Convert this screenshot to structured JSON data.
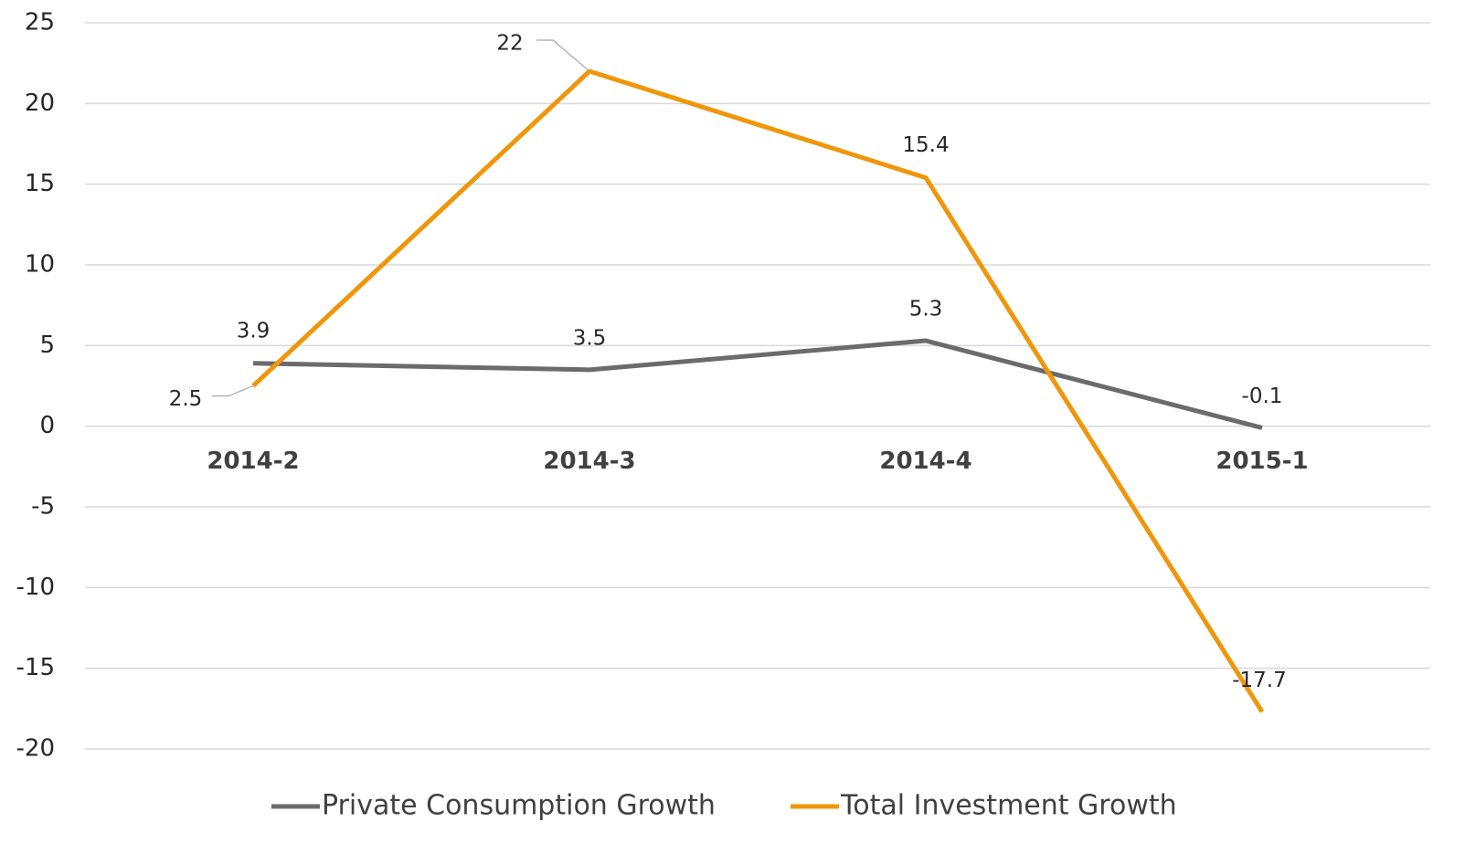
{
  "chart_data": {
    "type": "line",
    "categories": [
      "2014-2",
      "2014-3",
      "2014-4",
      "2015-1"
    ],
    "series": [
      {
        "name": "Private Consumption Growth",
        "color": "#6b6b6b",
        "values": [
          3.9,
          3.5,
          5.3,
          -0.1
        ]
      },
      {
        "name": "Total Investment Growth",
        "color": "#f0960a",
        "values": [
          2.5,
          22,
          15.4,
          -17.7
        ]
      }
    ],
    "ylim": [
      -20,
      25
    ],
    "yticks": [
      -20,
      -15,
      -10,
      -5,
      0,
      5,
      10,
      15,
      20,
      25
    ],
    "grid": true,
    "legend": "bottom"
  }
}
